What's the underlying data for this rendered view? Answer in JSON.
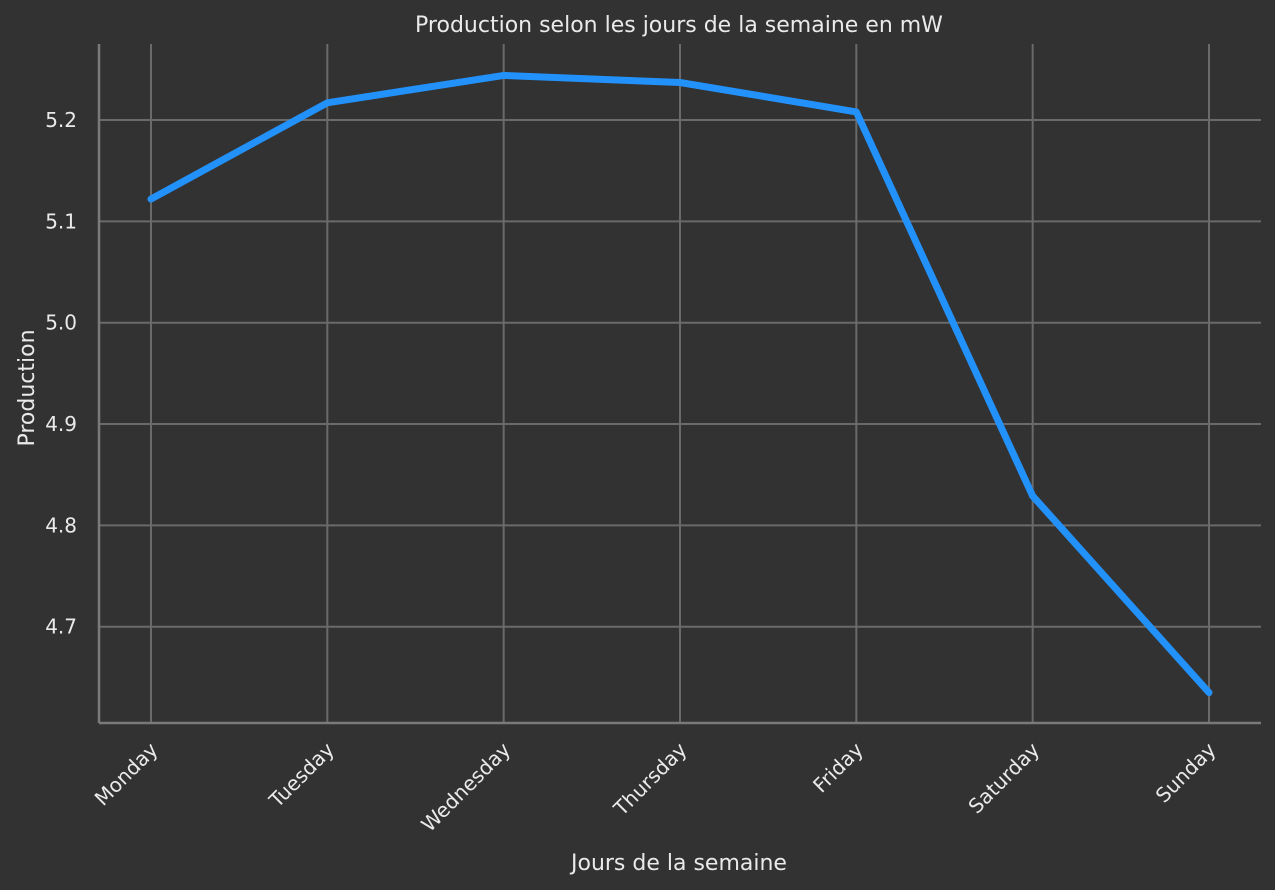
{
  "chart_data": {
    "type": "line",
    "title": "Production selon les jours de la semaine en mW",
    "xlabel": "Jours de la semaine",
    "ylabel": "Production",
    "categories": [
      "Monday",
      "Tuesday",
      "Wednesday",
      "Thursday",
      "Friday",
      "Saturday",
      "Sunday"
    ],
    "series": [
      {
        "values": [
          5.122,
          5.217,
          5.244,
          5.237,
          5.208,
          4.829,
          4.635
        ],
        "color": "#2391fa"
      }
    ],
    "yticks": [
      4.7,
      4.8,
      4.9,
      5.0,
      5.1,
      5.2
    ],
    "ytick_labels": [
      "4.7",
      "4.8",
      "4.9",
      "5.0",
      "5.1",
      "5.2"
    ],
    "ylim": [
      4.605,
      5.275
    ],
    "grid": true,
    "background": "#323232",
    "grid_color": "#6a6a6a",
    "text_color": "#eaeaea"
  }
}
